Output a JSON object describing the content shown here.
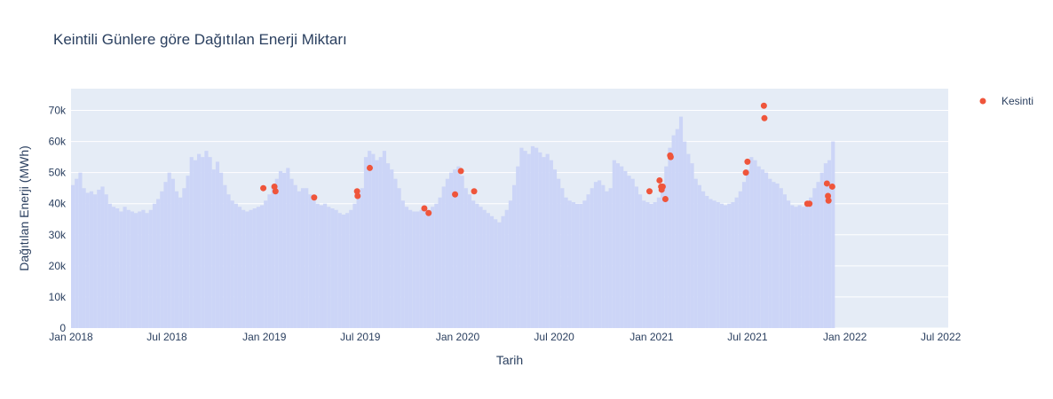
{
  "chart_data": {
    "type": "bar",
    "title": "Keintili Günlere göre Dağıtılan Enerji Miktarı",
    "xlabel": "Tarih",
    "ylabel": "Dağıtılan Enerji (MWh)",
    "xlim": [
      "2018-01-01",
      "2022-07-15"
    ],
    "ylim": [
      0,
      77000
    ],
    "x_ticks": [
      "2018-01-01",
      "2018-07-01",
      "2019-01-01",
      "2019-07-01",
      "2020-01-01",
      "2020-07-01",
      "2021-01-01",
      "2021-07-01",
      "2022-01-01",
      "2022-07-01"
    ],
    "x_tick_labels": [
      "Jan 2018",
      "Jul 2018",
      "Jan 2019",
      "Jul 2019",
      "Jan 2020",
      "Jul 2020",
      "Jan 2021",
      "Jul 2021",
      "Jan 2022",
      "Jul 2022"
    ],
    "y_ticks": [
      0,
      10000,
      20000,
      30000,
      40000,
      50000,
      60000,
      70000
    ],
    "y_tick_labels": [
      "0",
      "10k",
      "20k",
      "30k",
      "40k",
      "50k",
      "60k",
      "70k"
    ],
    "grid": true,
    "legend_position": "top-right",
    "series": [
      {
        "type": "bar",
        "color": "#ccd5f7",
        "x_start": "2018-01-01",
        "x_step_days": 7,
        "values": [
          46000,
          48000,
          50000,
          45000,
          43500,
          44000,
          43000,
          44500,
          45500,
          43000,
          40000,
          39000,
          38500,
          37500,
          39000,
          38000,
          37500,
          37000,
          37500,
          38000,
          37000,
          38000,
          40000,
          41500,
          44000,
          47000,
          50000,
          48000,
          44000,
          42000,
          45000,
          49000,
          55000,
          54000,
          56000,
          55000,
          57000,
          55000,
          51000,
          53500,
          50000,
          46000,
          43000,
          41000,
          40000,
          39000,
          38000,
          37500,
          38000,
          38500,
          39000,
          39500,
          41000,
          43000,
          46000,
          48000,
          50500,
          50000,
          51500,
          48000,
          46000,
          44000,
          45000,
          45000,
          43000,
          41000,
          40000,
          39500,
          40000,
          39000,
          38500,
          38000,
          37000,
          36500,
          37000,
          38000,
          40000,
          42000,
          45000,
          55000,
          57000,
          56000,
          54000,
          55000,
          57000,
          53000,
          51000,
          48000,
          45000,
          41000,
          39000,
          38000,
          37500,
          37500,
          38000,
          38500,
          38000,
          39000,
          40000,
          42000,
          45500,
          48000,
          50000,
          51000,
          52000,
          49000,
          45000,
          43000,
          41000,
          40000,
          39000,
          38000,
          37000,
          36000,
          35000,
          34000,
          36000,
          38000,
          41000,
          46000,
          52000,
          58000,
          57000,
          56000,
          58500,
          58000,
          56500,
          55000,
          56000,
          54000,
          51000,
          48000,
          45000,
          42000,
          41000,
          40500,
          40000,
          40000,
          41000,
          43000,
          45000,
          47000,
          47500,
          46000,
          44000,
          45000,
          54000,
          53000,
          52000,
          50500,
          49000,
          48000,
          45500,
          43000,
          41000,
          40500,
          40000,
          40500,
          42000,
          45000,
          52000,
          58000,
          62000,
          64000,
          68000,
          60000,
          56000,
          53000,
          48000,
          46000,
          44000,
          42500,
          41500,
          41000,
          40500,
          40000,
          39500,
          40000,
          40500,
          42000,
          44000,
          47000,
          51000,
          55000,
          54000,
          52000,
          51000,
          50000,
          48000,
          47000,
          46500,
          45000,
          43000,
          41000,
          39500,
          39000,
          39500,
          39000,
          40000,
          42000,
          45000,
          47000,
          50000,
          53000,
          54000,
          60000
        ]
      },
      {
        "name": "Kesinti",
        "type": "scatter",
        "color": "#ef553b",
        "points": [
          {
            "x": "2018-12-30",
            "y": 45000
          },
          {
            "x": "2019-01-20",
            "y": 45500
          },
          {
            "x": "2019-01-22",
            "y": 44000
          },
          {
            "x": "2019-04-05",
            "y": 42000
          },
          {
            "x": "2019-06-25",
            "y": 44000
          },
          {
            "x": "2019-06-26",
            "y": 42500
          },
          {
            "x": "2019-07-19",
            "y": 51500
          },
          {
            "x": "2019-10-30",
            "y": 38500
          },
          {
            "x": "2019-11-07",
            "y": 37000
          },
          {
            "x": "2019-12-27",
            "y": 43000
          },
          {
            "x": "2020-01-07",
            "y": 50500
          },
          {
            "x": "2020-02-01",
            "y": 44000
          },
          {
            "x": "2020-12-28",
            "y": 44000
          },
          {
            "x": "2021-01-16",
            "y": 47500
          },
          {
            "x": "2021-01-19",
            "y": 45500
          },
          {
            "x": "2021-01-20",
            "y": 44500
          },
          {
            "x": "2021-01-22",
            "y": 45500
          },
          {
            "x": "2021-01-27",
            "y": 41500
          },
          {
            "x": "2021-02-05",
            "y": 55500
          },
          {
            "x": "2021-02-06",
            "y": 55000
          },
          {
            "x": "2021-06-28",
            "y": 50000
          },
          {
            "x": "2021-07-01",
            "y": 53500
          },
          {
            "x": "2021-08-01",
            "y": 71500
          },
          {
            "x": "2021-08-02",
            "y": 67500
          },
          {
            "x": "2021-10-22",
            "y": 40000
          },
          {
            "x": "2021-10-26",
            "y": 40000
          },
          {
            "x": "2021-11-28",
            "y": 46500
          },
          {
            "x": "2021-11-30",
            "y": 42500
          },
          {
            "x": "2021-12-01",
            "y": 41000
          },
          {
            "x": "2021-12-08",
            "y": 45500
          }
        ]
      }
    ]
  }
}
